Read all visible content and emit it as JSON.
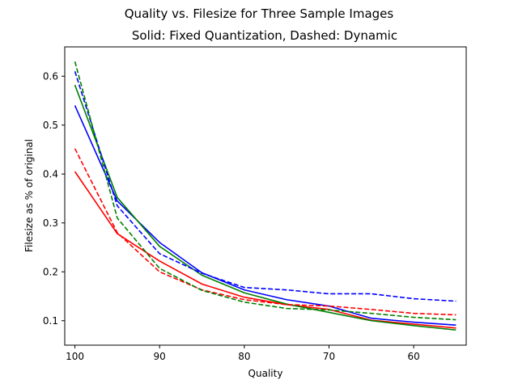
{
  "chart_data": {
    "type": "line",
    "title": "Quality vs. Filesize for Three Sample Images",
    "subtitle": "Solid: Fixed Quantization, Dashed: Dynamic",
    "xlabel": "Quality",
    "ylabel": "Filesize as % of original",
    "xlim": [
      101.2,
      53.8
    ],
    "ylim": [
      0.05,
      0.66
    ],
    "x_inverted": true,
    "grid": false,
    "legend": "none",
    "xticks": [
      100,
      90,
      80,
      70,
      60
    ],
    "yticks": [
      0.1,
      0.2,
      0.3,
      0.4,
      0.5,
      0.6
    ],
    "x": [
      100,
      95,
      90,
      85,
      80,
      75,
      70,
      65,
      60,
      55
    ],
    "series": [
      {
        "color": "#ff0000",
        "style": "solid",
        "values": [
          0.405,
          0.278,
          0.222,
          0.175,
          0.148,
          0.133,
          0.123,
          0.101,
          0.093,
          0.085
        ]
      },
      {
        "color": "#0000ff",
        "style": "solid",
        "values": [
          0.54,
          0.345,
          0.26,
          0.198,
          0.163,
          0.143,
          0.13,
          0.105,
          0.097,
          0.091
        ]
      },
      {
        "color": "#008000",
        "style": "solid",
        "values": [
          0.582,
          0.352,
          0.252,
          0.193,
          0.157,
          0.134,
          0.117,
          0.1,
          0.09,
          0.081
        ]
      },
      {
        "color": "#ff0000",
        "style": "dashed",
        "values": [
          0.452,
          0.28,
          0.2,
          0.163,
          0.143,
          0.133,
          0.13,
          0.123,
          0.115,
          0.112
        ]
      },
      {
        "color": "#0000ff",
        "style": "dashed",
        "values": [
          0.61,
          0.335,
          0.237,
          0.197,
          0.168,
          0.163,
          0.155,
          0.155,
          0.145,
          0.14
        ]
      },
      {
        "color": "#008000",
        "style": "dashed",
        "values": [
          0.63,
          0.31,
          0.207,
          0.162,
          0.138,
          0.125,
          0.122,
          0.115,
          0.107,
          0.102
        ]
      }
    ]
  }
}
